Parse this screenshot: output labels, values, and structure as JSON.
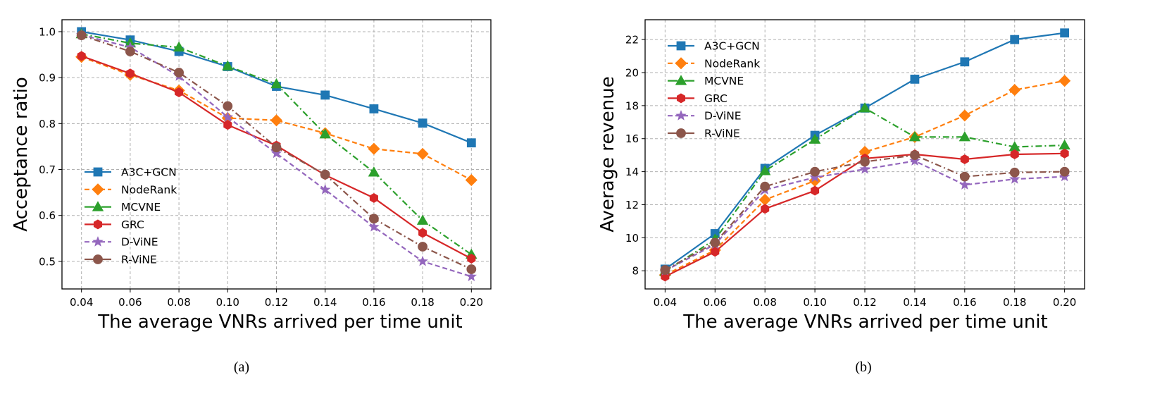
{
  "chart_data": [
    {
      "id": "a",
      "type": "line",
      "caption": "(a)",
      "title": "",
      "xlabel": "The average VNRs arrived per time unit",
      "ylabel": "Acceptance ratio",
      "x": [
        0.04,
        0.06,
        0.08,
        0.1,
        0.12,
        0.14,
        0.16,
        0.18,
        0.2
      ],
      "x_tick_labels": [
        "0.04",
        "0.06",
        "0.08",
        "0.10",
        "0.12",
        "0.14",
        "0.16",
        "0.18",
        "0.20"
      ],
      "y_ticks": [
        0.5,
        0.6,
        0.7,
        0.8,
        0.9,
        1.0
      ],
      "y_tick_labels": [
        "0.5",
        "0.6",
        "0.7",
        "0.8",
        "0.9",
        "1.0"
      ],
      "xlim": [
        0.032,
        0.208
      ],
      "ylim": [
        0.44,
        1.026
      ],
      "grid": true,
      "legend_position": "lower-left",
      "series": [
        {
          "name": "A3C+GCN",
          "color": "#1f77b4",
          "marker": "square",
          "dash": "solid",
          "values": [
            1.0,
            0.982,
            0.957,
            0.924,
            0.881,
            0.862,
            0.832,
            0.801,
            0.758
          ]
        },
        {
          "name": "NodeRank",
          "color": "#ff7f0e",
          "marker": "diamond",
          "dash": "dashed",
          "values": [
            0.945,
            0.906,
            0.872,
            0.812,
            0.807,
            0.779,
            0.745,
            0.734,
            0.677
          ]
        },
        {
          "name": "MCVNE",
          "color": "#2ca02c",
          "marker": "triangle",
          "dash": "dashdot",
          "values": [
            0.995,
            0.975,
            0.966,
            0.925,
            0.886,
            0.777,
            0.694,
            0.589,
            0.515
          ]
        },
        {
          "name": "GRC",
          "color": "#d62728",
          "marker": "hexagon",
          "dash": "solid",
          "values": [
            0.947,
            0.909,
            0.868,
            0.797,
            0.752,
            0.688,
            0.638,
            0.562,
            0.506
          ]
        },
        {
          "name": "D-ViNE",
          "color": "#9467bd",
          "marker": "star",
          "dash": "dashed",
          "values": [
            0.993,
            0.966,
            0.903,
            0.814,
            0.735,
            0.656,
            0.575,
            0.5,
            0.467
          ]
        },
        {
          "name": "R-ViNE",
          "color": "#8c564b",
          "marker": "circle",
          "dash": "dashdot",
          "values": [
            0.992,
            0.957,
            0.911,
            0.838,
            0.748,
            0.689,
            0.593,
            0.532,
            0.483
          ]
        }
      ]
    },
    {
      "id": "b",
      "type": "line",
      "caption": "(b)",
      "title": "",
      "xlabel": "The average VNRs arrived per time unit",
      "ylabel": "Average revenue",
      "x": [
        0.04,
        0.06,
        0.08,
        0.1,
        0.12,
        0.14,
        0.16,
        0.18,
        0.2
      ],
      "x_tick_labels": [
        "0.04",
        "0.06",
        "0.08",
        "0.10",
        "0.12",
        "0.14",
        "0.16",
        "0.18",
        "0.20"
      ],
      "y_ticks": [
        8,
        10,
        12,
        14,
        16,
        18,
        20,
        22
      ],
      "y_tick_labels": [
        "8",
        "10",
        "12",
        "14",
        "16",
        "18",
        "20",
        "22"
      ],
      "xlim": [
        0.032,
        0.208
      ],
      "ylim": [
        6.9,
        23.2
      ],
      "grid": true,
      "legend_position": "upper-left",
      "series": [
        {
          "name": "A3C+GCN",
          "color": "#1f77b4",
          "marker": "square",
          "dash": "solid",
          "values": [
            8.1,
            10.25,
            14.2,
            16.2,
            17.85,
            19.6,
            20.65,
            22.0,
            22.4
          ]
        },
        {
          "name": "NodeRank",
          "color": "#ff7f0e",
          "marker": "diamond",
          "dash": "dashed",
          "values": [
            7.75,
            9.25,
            12.3,
            13.45,
            15.2,
            16.1,
            17.4,
            18.95,
            19.5
          ]
        },
        {
          "name": "MCVNE",
          "color": "#2ca02c",
          "marker": "triangle",
          "dash": "dashdot",
          "values": [
            7.95,
            9.9,
            14.05,
            15.95,
            17.85,
            16.1,
            16.1,
            15.5,
            15.6
          ]
        },
        {
          "name": "GRC",
          "color": "#d62728",
          "marker": "hexagon",
          "dash": "solid",
          "values": [
            7.65,
            9.15,
            11.75,
            12.85,
            14.8,
            15.05,
            14.75,
            15.05,
            15.1
          ]
        },
        {
          "name": "D-ViNE",
          "color": "#9467bd",
          "marker": "star",
          "dash": "dashed",
          "values": [
            8.0,
            9.6,
            12.9,
            13.65,
            14.15,
            14.65,
            13.2,
            13.55,
            13.7
          ]
        },
        {
          "name": "R-ViNE",
          "color": "#8c564b",
          "marker": "circle",
          "dash": "dashdot",
          "values": [
            8.05,
            9.7,
            13.1,
            14.0,
            14.6,
            15.0,
            13.7,
            13.95,
            14.0
          ]
        }
      ]
    }
  ]
}
